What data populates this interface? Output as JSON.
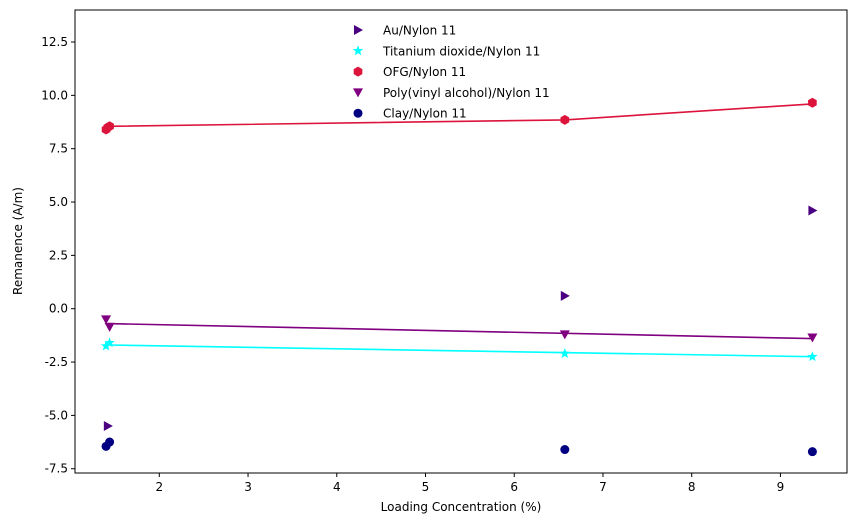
{
  "chart_data": {
    "type": "scatter",
    "title": "",
    "xlabel": "Loading Concentration (%)",
    "ylabel": "Remanence (A/m)",
    "xlim": [
      1.05,
      9.75
    ],
    "ylim": [
      -7.7,
      14.0
    ],
    "xticks": [
      2,
      3,
      4,
      5,
      6,
      7,
      8,
      9
    ],
    "yticks": [
      -7.5,
      -5.0,
      -2.5,
      0.0,
      2.5,
      5.0,
      7.5,
      10.0,
      12.5
    ],
    "grid": false,
    "legend_position": "top-center",
    "series": [
      {
        "name": "Au/Nylon 11",
        "marker": "triangle-right",
        "color": "#4b0082",
        "points": [
          [
            1.42,
            -5.5
          ],
          [
            6.57,
            0.6
          ],
          [
            9.36,
            4.6
          ]
        ],
        "fit": null
      },
      {
        "name": "Titanium dioxide/Nylon 11",
        "marker": "star",
        "color": "#00ffff",
        "points": [
          [
            1.4,
            -1.75
          ],
          [
            1.44,
            -1.6
          ],
          [
            6.57,
            -2.1
          ],
          [
            9.36,
            -2.25
          ]
        ],
        "fit": [
          [
            1.42,
            -1.7
          ],
          [
            9.36,
            -2.25
          ]
        ]
      },
      {
        "name": "OFG/Nylon 11",
        "marker": "hexagon",
        "color": "#dc143c",
        "points": [
          [
            1.4,
            8.4
          ],
          [
            1.42,
            8.5
          ],
          [
            1.44,
            8.55
          ],
          [
            6.57,
            8.85
          ],
          [
            9.36,
            9.65
          ]
        ],
        "fit": [
          [
            1.42,
            8.55
          ],
          [
            6.57,
            8.85
          ],
          [
            9.36,
            9.6
          ]
        ]
      },
      {
        "name": "Poly(vinyl alcohol)/Nylon 11",
        "marker": "triangle-down",
        "color": "#800080",
        "points": [
          [
            1.4,
            -0.5
          ],
          [
            1.44,
            -0.85
          ],
          [
            6.57,
            -1.2
          ],
          [
            9.36,
            -1.35
          ]
        ],
        "fit": [
          [
            1.42,
            -0.7
          ],
          [
            9.36,
            -1.4
          ]
        ]
      },
      {
        "name": "Clay/Nylon 11",
        "marker": "circle",
        "color": "#000080",
        "points": [
          [
            1.4,
            -6.45
          ],
          [
            1.44,
            -6.25
          ],
          [
            6.57,
            -6.6
          ],
          [
            9.36,
            -6.7
          ]
        ],
        "fit": null
      }
    ]
  }
}
